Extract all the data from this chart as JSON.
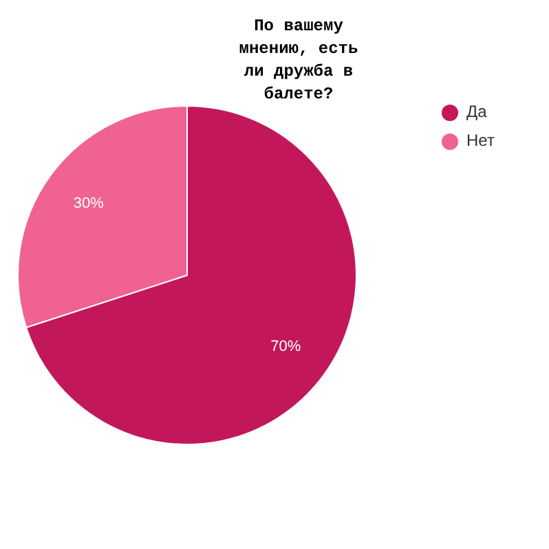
{
  "chart_data": {
    "type": "pie",
    "title": "По вашему мнению, есть ли дружба в балете?",
    "categories": [
      "Да",
      "Нет"
    ],
    "values": [
      70,
      30
    ],
    "colors": [
      "#c2185b",
      "#f06292"
    ],
    "value_labels": [
      "70%",
      "30%"
    ],
    "legend": "right"
  }
}
